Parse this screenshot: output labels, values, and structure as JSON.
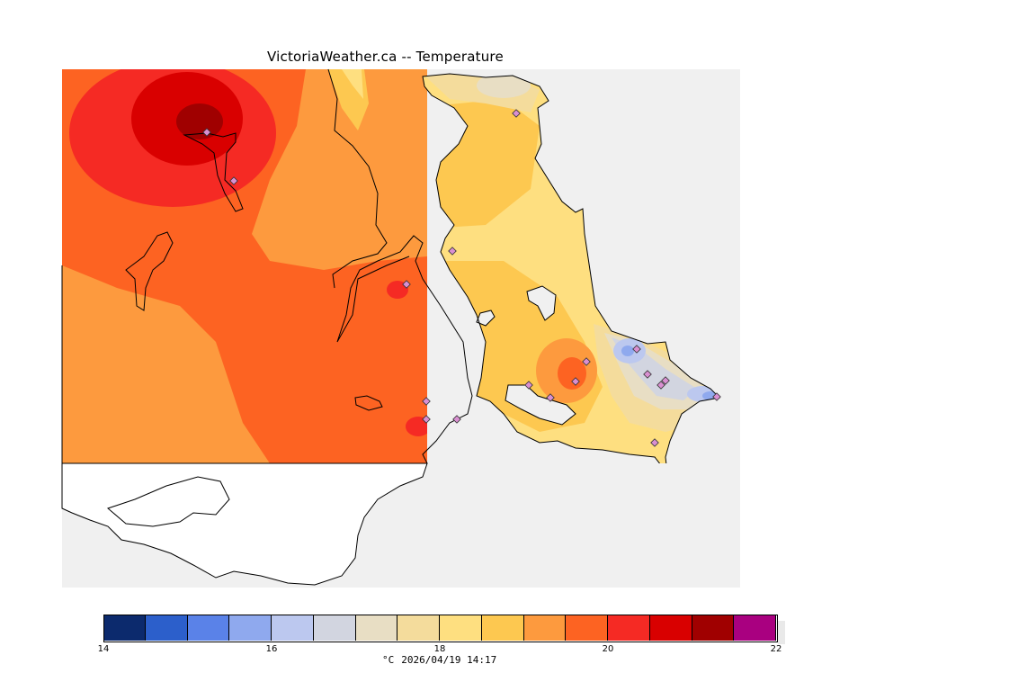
{
  "header": {
    "title": "VictoriaWeather.ca -- Temperature"
  },
  "legend": {
    "unit": "°C",
    "timestamp": "2026/04/19 14:17",
    "ticks": [
      "14",
      "16",
      "18",
      "20",
      "22"
    ],
    "range": [
      14,
      22
    ],
    "colors": [
      "#0c2a6d",
      "#2c5fcb",
      "#5a82e8",
      "#8fa9ee",
      "#bcc8ef",
      "#d2d5e0",
      "#e8dec4",
      "#f4dc9c",
      "#fedf80",
      "#fdc850",
      "#fd9a3e",
      "#fd6322",
      "#f52a24",
      "#d90000",
      "#a00000",
      "#a90080"
    ]
  },
  "map": {
    "colors": {
      "water": "#f0f0f0",
      "land_outline": "#000000",
      "station_fill": "#d98fd1",
      "white_land": "#ffffff"
    },
    "stations": [
      {
        "id": "s1"
      },
      {
        "id": "s2"
      },
      {
        "id": "s3"
      },
      {
        "id": "s4"
      },
      {
        "id": "s5"
      },
      {
        "id": "s6"
      },
      {
        "id": "s7"
      },
      {
        "id": "s8"
      },
      {
        "id": "s9"
      },
      {
        "id": "s10"
      },
      {
        "id": "s11"
      },
      {
        "id": "s12"
      },
      {
        "id": "s13"
      },
      {
        "id": "s14"
      },
      {
        "id": "s15"
      },
      {
        "id": "s16"
      },
      {
        "id": "s17"
      },
      {
        "id": "s18"
      }
    ]
  }
}
